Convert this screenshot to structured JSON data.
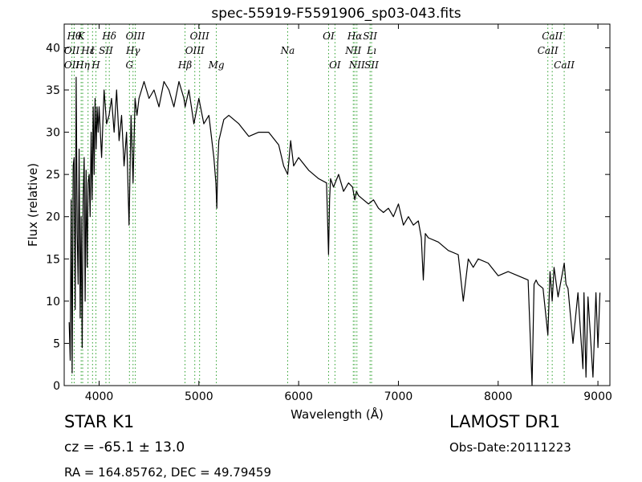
{
  "chart_data": {
    "type": "line",
    "title": "spec-55919-F5591906_sp03-043.fits",
    "xlabel": "Wavelength (Å)",
    "ylabel": "Flux (relative)",
    "xlim": [
      3650,
      9120
    ],
    "ylim": [
      0,
      42.8
    ],
    "xticks": [
      4000,
      5000,
      6000,
      7000,
      8000,
      9000
    ],
    "yticks": [
      0,
      5,
      10,
      15,
      20,
      25,
      30,
      35,
      40
    ],
    "grid": false,
    "series_color": "#000000",
    "line_marker_color": "#2ca02c",
    "series": [
      {
        "x": [
          3700,
          3710,
          3720,
          3730,
          3740,
          3750,
          3760,
          3770,
          3780,
          3790,
          3800,
          3810,
          3820,
          3830,
          3840,
          3850,
          3860,
          3870,
          3880,
          3890,
          3900,
          3910,
          3920,
          3930,
          3940,
          3950,
          3960,
          3970,
          3980,
          3990,
          4000,
          4025,
          4050,
          4075,
          4100,
          4125,
          4150,
          4175,
          4200,
          4225,
          4250,
          4275,
          4300,
          4320,
          4340,
          4360,
          4380,
          4400,
          4450,
          4500,
          4550,
          4600,
          4650,
          4700,
          4750,
          4800,
          4850,
          4862,
          4900,
          4950,
          5000,
          5050,
          5100,
          5150,
          5170,
          5180,
          5190,
          5200,
          5250,
          5300,
          5400,
          5500,
          5600,
          5700,
          5800,
          5850,
          5890,
          5920,
          5950,
          6000,
          6100,
          6200,
          6280,
          6300,
          6310,
          6320,
          6350,
          6400,
          6450,
          6500,
          6540,
          6563,
          6580,
          6600,
          6650,
          6700,
          6750,
          6800,
          6850,
          6900,
          6950,
          7000,
          7050,
          7100,
          7150,
          7200,
          7230,
          7250,
          7270,
          7300,
          7400,
          7500,
          7600,
          7650,
          7700,
          7750,
          7800,
          7900,
          8000,
          8100,
          8200,
          8300,
          8340,
          8360,
          8380,
          8400,
          8450,
          8498,
          8520,
          8542,
          8560,
          8600,
          8662,
          8680,
          8700,
          8750,
          8800,
          8850,
          8860,
          8880,
          8900,
          8950,
          8980,
          9000,
          9020
        ],
        "values": [
          7.5,
          3.0,
          22.0,
          1.5,
          26.0,
          27.0,
          9.0,
          36.5,
          18.0,
          12.0,
          28.0,
          8.0,
          20.0,
          4.5,
          22.0,
          27.0,
          10.0,
          25.5,
          14.0,
          24.0,
          25.0,
          20.0,
          30.0,
          22.0,
          33.0,
          25.0,
          34.0,
          28.0,
          33.0,
          30.0,
          33.0,
          27.0,
          35.0,
          31.0,
          32.0,
          34.0,
          30.0,
          35.0,
          29.0,
          32.0,
          26.0,
          30.0,
          19.0,
          32.0,
          24.0,
          34.0,
          32.0,
          34.0,
          36.0,
          34.0,
          35.0,
          33.0,
          36.0,
          35.0,
          33.0,
          36.0,
          34.0,
          33.0,
          35.0,
          31.0,
          34.0,
          31.0,
          32.0,
          27.0,
          24.0,
          21.0,
          26.5,
          29.0,
          31.5,
          32.0,
          31.0,
          29.5,
          30.0,
          30.0,
          28.5,
          26.0,
          25.0,
          29.0,
          26.0,
          27.0,
          25.5,
          24.5,
          24.0,
          15.5,
          22.0,
          24.5,
          23.5,
          25.0,
          23.0,
          24.0,
          23.5,
          22.0,
          23.0,
          22.5,
          22.0,
          21.5,
          22.0,
          21.0,
          20.5,
          21.0,
          20.0,
          21.5,
          19.0,
          20.0,
          19.0,
          19.5,
          17.5,
          12.5,
          18.0,
          17.5,
          17.0,
          16.0,
          15.5,
          10.0,
          15.0,
          14.0,
          15.0,
          14.5,
          13.0,
          13.5,
          13.0,
          12.5,
          0.0,
          12.0,
          12.5,
          12.0,
          11.5,
          6.0,
          13.5,
          10.0,
          14.0,
          10.5,
          14.5,
          12.0,
          11.5,
          5.0,
          11.0,
          2.0,
          11.0,
          1.0,
          10.5,
          1.0,
          11.0,
          4.5,
          11.0
        ]
      }
    ],
    "lines_top": [
      {
        "x": 3750,
        "label": "Hθ"
      },
      {
        "x": 3820,
        "label": "K"
      },
      {
        "x": 4102,
        "label": "Hδ"
      },
      {
        "x": 4363,
        "label": "OIII"
      },
      {
        "x": 5007,
        "label": "OIII"
      },
      {
        "x": 6300,
        "label": "OI"
      },
      {
        "x": 6563,
        "label": "Hα"
      },
      {
        "x": 6716,
        "label": "SII"
      },
      {
        "x": 8542,
        "label": "CaII"
      }
    ],
    "lines_mid": [
      {
        "x": 3727,
        "label": "OII"
      },
      {
        "x": 3889,
        "label": "Hε"
      },
      {
        "x": 4068,
        "label": "SII"
      },
      {
        "x": 3934,
        "label": "I"
      },
      {
        "x": 4340,
        "label": "Hγ"
      },
      {
        "x": 4959,
        "label": "OIII"
      },
      {
        "x": 5890,
        "label": "Na"
      },
      {
        "x": 6548,
        "label": "NII"
      },
      {
        "x": 6731,
        "label": "Lı"
      },
      {
        "x": 8498,
        "label": "CaII"
      }
    ],
    "lines_low": [
      {
        "x": 3727,
        "label": "OII"
      },
      {
        "x": 3835,
        "label": "Hη"
      },
      {
        "x": 3968,
        "label": "H"
      },
      {
        "x": 4304,
        "label": "G"
      },
      {
        "x": 4861,
        "label": "Hβ"
      },
      {
        "x": 5175,
        "label": "Mg"
      },
      {
        "x": 6364,
        "label": "OI"
      },
      {
        "x": 6584,
        "label": "NII"
      },
      {
        "x": 6731,
        "label": "SII"
      },
      {
        "x": 8662,
        "label": "CaII"
      }
    ]
  },
  "info": {
    "class_label": "STAR   K1",
    "cz": "cz = -65.1 ± 13.0",
    "radec": "RA = 164.85762, DEC = 49.79459",
    "survey": "LAMOST DR1",
    "obs_date": "Obs-Date:20111223"
  }
}
